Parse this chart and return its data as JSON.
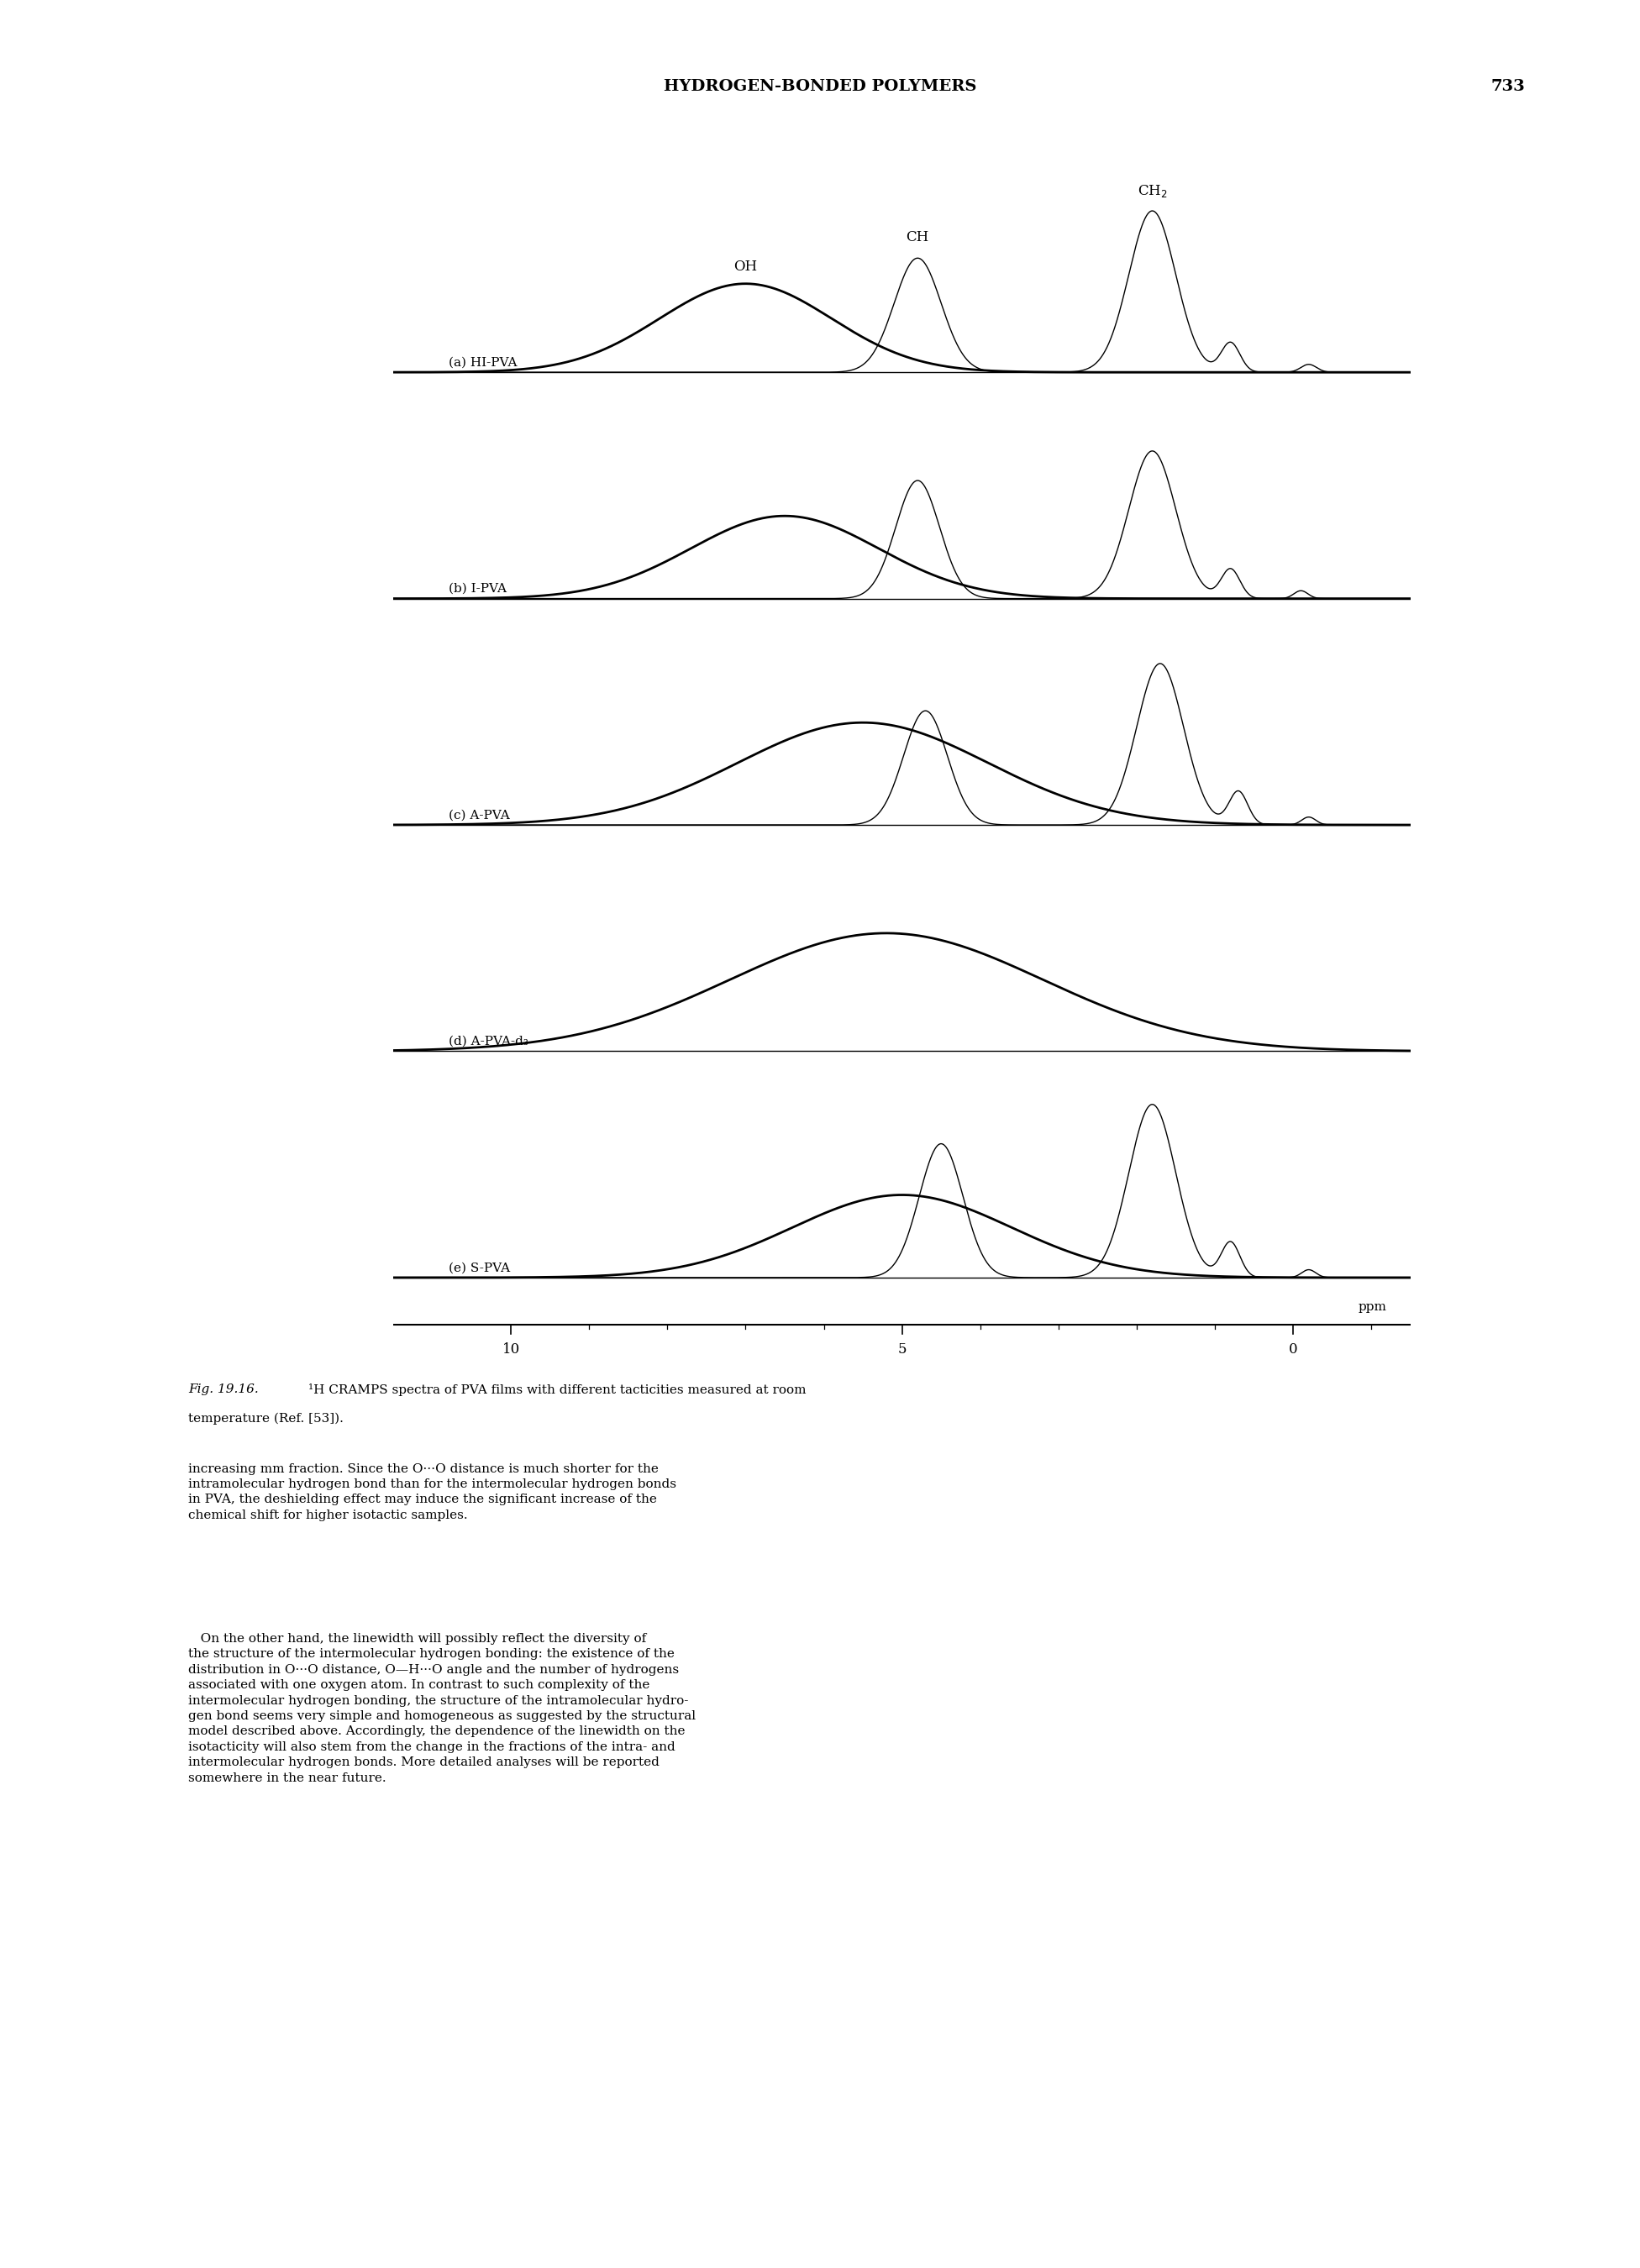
{
  "page_header": "HYDROGEN-BONDED POLYMERS",
  "page_number": "733",
  "spectra_labels": [
    "(a) HI-PVA",
    "(b) I-PVA",
    "(c) A-PVA",
    "(d) A-PVA-d₃",
    "(e) S-PVA"
  ],
  "peak_labels_top": [
    "OH",
    "CH",
    "CH₂"
  ],
  "xaxis_label": "ppm",
  "xaxis_ticks": [
    10,
    5,
    0
  ],
  "xmin": 11.5,
  "xmax": -1.5,
  "fig_caption_italic": "Fig. 19.16.",
  "fig_caption_super": "¹H",
  "fig_caption_rest": " CRAMPS spectra of PVA films with different tacticities measured at room\ntemperature (Ref. [53]).",
  "body1": "increasing mm fraction. Since the O···O distance is much shorter for the\nintramolecular hydrogen bond than for the intermolecular hydrogen bonds\nin PVA, the deshielding effect may induce the significant increase of the\nchemical shift for higher isotactic samples.",
  "body2": "   On the other hand, the linewidth will possibly reflect the diversity of\nthe structure of the intermolecular hydrogen bonding: the existence of the\ndistribution in O···O distance, O—H···O angle and the number of hydrogens\nassociated with one oxygen atom. In contrast to such complexity of the\nintermolecular hydrogen bonding, the structure of the intramolecular hydro-\ngen bond seems very simple and homogeneous as suggested by the structural\nmodel described above. Accordingly, the dependence of the linewidth on the\nisotacticity will also stem from the change in the fractions of the intra- and\nintermolecular hydrogen bonds. More detailed analyses will be reported\nsomewhere in the near future."
}
